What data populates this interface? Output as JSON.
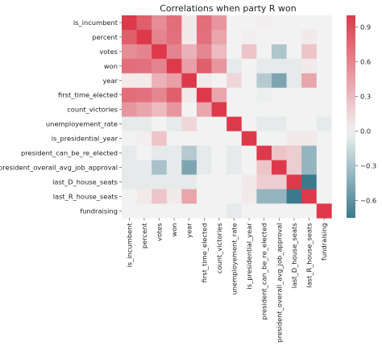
{
  "chart_data": {
    "type": "heatmap",
    "title": "Correlations when party R won",
    "labels": [
      "is_incumbent",
      "percent",
      "votes",
      "won",
      "year",
      "first_time_elected",
      "count_victories",
      "unemployement_rate",
      "is_presidential_year",
      "president_can_be_re_elected",
      "president_overall_avg_job_approval",
      "last_D_house_seats",
      "last_R_house_seats",
      "fundraising"
    ],
    "matrix": [
      [
        1.0,
        0.8,
        0.55,
        0.72,
        0.05,
        0.72,
        0.5,
        0.0,
        0.0,
        0.02,
        0.0,
        0.0,
        0.0,
        0.0
      ],
      [
        0.8,
        1.0,
        0.6,
        0.7,
        0.05,
        0.7,
        0.42,
        0.0,
        0.02,
        0.0,
        0.0,
        0.0,
        0.05,
        0.0
      ],
      [
        0.55,
        0.6,
        1.0,
        0.6,
        0.35,
        0.58,
        0.3,
        0.0,
        0.25,
        0.0,
        -0.28,
        0.0,
        0.25,
        0.0
      ],
      [
        0.72,
        0.7,
        0.6,
        1.0,
        0.45,
        0.8,
        0.5,
        -0.05,
        0.0,
        -0.05,
        -0.05,
        -0.05,
        0.05,
        0.0
      ],
      [
        0.05,
        0.05,
        0.35,
        0.45,
        1.0,
        0.05,
        0.0,
        0.15,
        0.0,
        -0.25,
        -0.48,
        -0.05,
        0.42,
        0.0
      ],
      [
        0.72,
        0.7,
        0.58,
        0.8,
        0.05,
        1.0,
        0.42,
        0.0,
        0.0,
        -0.02,
        0.0,
        0.0,
        0.0,
        0.0
      ],
      [
        0.5,
        0.42,
        0.3,
        0.5,
        0.0,
        0.42,
        1.0,
        0.0,
        0.0,
        0.0,
        0.0,
        0.0,
        0.0,
        0.0
      ],
      [
        -0.05,
        -0.05,
        0.0,
        -0.05,
        0.15,
        0.0,
        0.0,
        1.0,
        0.0,
        -0.05,
        -0.05,
        0.0,
        0.0,
        -0.05
      ],
      [
        0.0,
        0.02,
        0.25,
        0.0,
        0.0,
        0.0,
        0.0,
        0.0,
        1.0,
        0.0,
        0.0,
        0.05,
        0.05,
        0.0
      ],
      [
        -0.05,
        0.0,
        -0.05,
        -0.05,
        -0.25,
        -0.05,
        0.0,
        -0.05,
        0.0,
        1.0,
        0.25,
        0.2,
        -0.38,
        0.0
      ],
      [
        -0.05,
        -0.05,
        -0.3,
        -0.05,
        -0.48,
        -0.05,
        0.0,
        -0.05,
        0.0,
        0.25,
        1.0,
        0.2,
        -0.38,
        0.0
      ],
      [
        -0.05,
        -0.05,
        -0.05,
        -0.05,
        -0.05,
        0.0,
        0.0,
        0.0,
        0.05,
        0.2,
        0.2,
        1.0,
        -0.75,
        0.0
      ],
      [
        0.0,
        0.05,
        0.25,
        0.05,
        0.42,
        0.0,
        0.0,
        0.0,
        0.05,
        -0.38,
        -0.38,
        -0.75,
        1.0,
        0.0
      ],
      [
        0.0,
        0.0,
        0.0,
        0.0,
        0.0,
        0.0,
        0.0,
        -0.05,
        0.0,
        0.0,
        0.0,
        0.0,
        0.0,
        1.0
      ]
    ],
    "colorbar": {
      "vmin": -0.75,
      "vmax": 1.0,
      "ticks": [
        0.9,
        0.6,
        0.3,
        0.0,
        -0.3,
        -0.6
      ],
      "tick_labels": [
        "0.9",
        "0.6",
        "0.3",
        "0.0",
        "−0.3",
        "−0.6"
      ]
    },
    "colors": {
      "negative": "#3b7a8c",
      "neutral": "#f2f2f2",
      "positive": "#dc3a4b"
    },
    "grid": false,
    "legend": "colorbar-right"
  }
}
